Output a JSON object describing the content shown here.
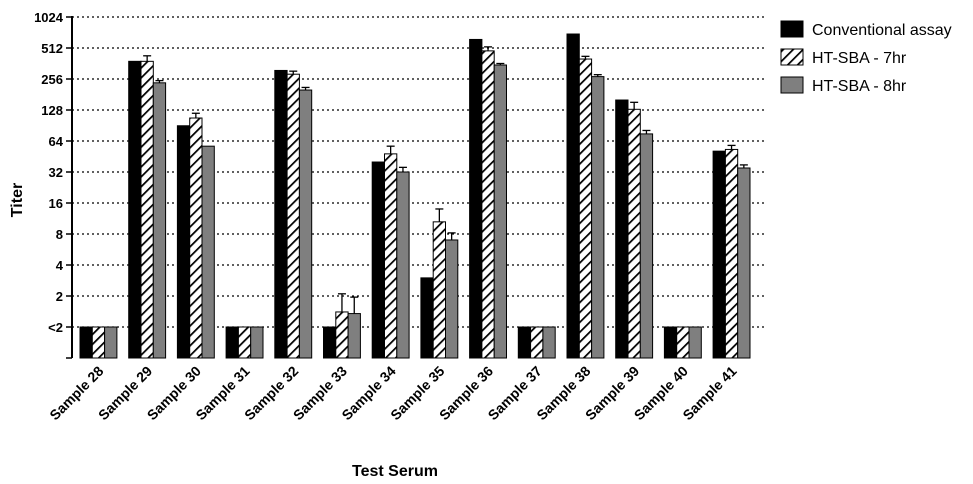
{
  "chart_data": {
    "type": "bar",
    "xlabel": "Test Serum",
    "ylabel": "Titer",
    "y_scale": "log2",
    "y_ticks": [
      "",
      "<2",
      "2",
      "4",
      "8",
      "16",
      "32",
      "64",
      "128",
      "256",
      "512",
      "1024"
    ],
    "y_tick_values": [
      0.5,
      1,
      2,
      4,
      8,
      16,
      32,
      64,
      128,
      256,
      512,
      1024
    ],
    "ylim": [
      0.5,
      1024
    ],
    "grid": "horizontal dotted",
    "legend_position": "right",
    "categories": [
      "Sample 28",
      "Sample 29",
      "Sample 30",
      "Sample 31",
      "Sample 32",
      "Sample 33",
      "Sample 34",
      "Sample 35",
      "Sample 36",
      "Sample 37",
      "Sample 38",
      "Sample 39",
      "Sample 40",
      "Sample 41"
    ],
    "series": [
      {
        "name": "Conventional assay",
        "pattern": "solid",
        "color": "#000000",
        "values": [
          1,
          380,
          90,
          1,
          310,
          1,
          40,
          3,
          620,
          1,
          700,
          160,
          1,
          51
        ],
        "errors": [
          0,
          0,
          0,
          0,
          0,
          0,
          0,
          0,
          0,
          0,
          0,
          0,
          0,
          0
        ]
      },
      {
        "name": "HT-SBA - 7hr",
        "pattern": "hatched",
        "color": "#000000",
        "values": [
          1,
          380,
          107,
          1,
          285,
          1.4,
          48,
          10.5,
          480,
          1,
          400,
          130,
          1,
          53
        ],
        "errors": [
          0,
          50,
          12,
          0,
          20,
          0.7,
          9,
          3.5,
          45,
          0,
          25,
          22,
          0,
          5
        ]
      },
      {
        "name": "HT-SBA - 8hr",
        "pattern": "solid",
        "color": "#7f7f7f",
        "values": [
          1,
          235,
          57,
          1,
          200,
          1.35,
          32,
          7,
          350,
          1,
          270,
          75,
          1,
          35
        ],
        "errors": [
          0,
          12,
          0,
          0,
          12,
          0.6,
          3.5,
          1.2,
          12,
          0,
          12,
          6,
          0,
          2.5
        ]
      }
    ]
  }
}
